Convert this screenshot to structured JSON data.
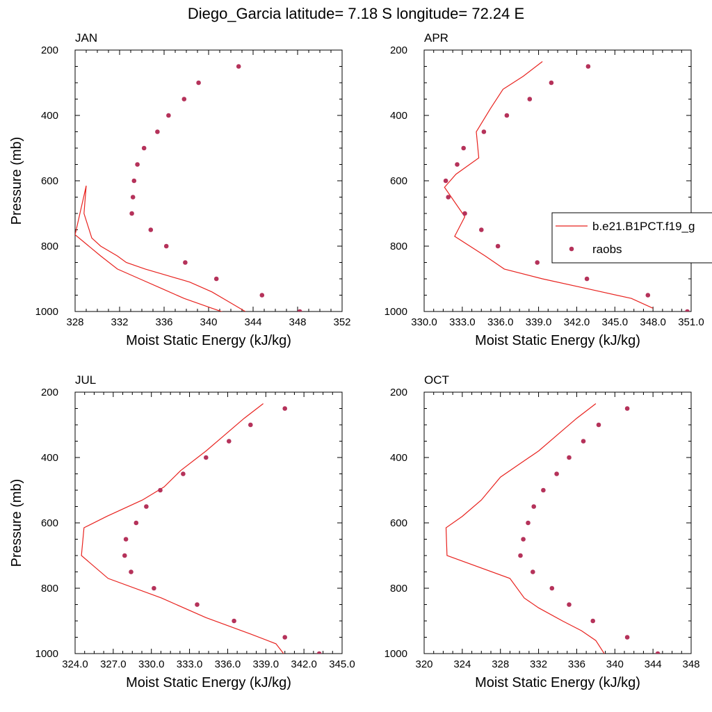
{
  "title": "Diego_Garcia  latitude= 7.18 S longitude= 72.24 E",
  "colors": {
    "model": "#e8221e",
    "obs": "#b5325a",
    "axis": "#000000"
  },
  "legend": {
    "model_label": "b.e21.B1PCT.f19_g",
    "obs_label": "raobs"
  },
  "chart_data": [
    {
      "type": "line",
      "panel": "JAN",
      "xlabel": "Moist Static Energy (kJ/kg)",
      "ylabel": "Pressure (mb)",
      "xlim": [
        328,
        352
      ],
      "xticks": [
        "328",
        "332",
        "336",
        "340",
        "344",
        "348",
        "352"
      ],
      "ylim": [
        200,
        1000
      ],
      "yticks": [
        "200",
        "400",
        "600",
        "800",
        "1000"
      ],
      "series": [
        {
          "name": "b.e21.B1PCT.f19_g",
          "x": [
            343.3,
            341.8,
            340.3,
            338.3,
            336.3,
            334.3,
            332.6,
            331.8,
            330.3,
            329.5,
            328.8,
            329.0,
            328.0,
            330.3,
            331.8,
            333.8,
            335.8,
            337.8,
            340.3,
            342.0
          ],
          "y": [
            1000,
            970,
            940,
            910,
            890,
            870,
            850,
            830,
            800,
            775,
            700,
            615,
            765,
            830,
            870,
            900,
            930,
            960,
            990,
            1010
          ]
        },
        {
          "name": "raobs",
          "x": [
            348.2,
            344.8,
            340.7,
            337.9,
            336.2,
            334.8,
            333.1,
            333.2,
            333.3,
            333.6,
            334.2,
            335.4,
            336.4,
            337.8,
            339.1,
            342.7
          ],
          "y": [
            1000,
            950,
            900,
            850,
            800,
            750,
            700,
            650,
            600,
            550,
            500,
            450,
            400,
            350,
            300,
            250
          ]
        }
      ]
    },
    {
      "type": "line",
      "panel": "APR",
      "xlabel": "Moist Static Energy (kJ/kg)",
      "ylabel": "",
      "xlim": [
        330,
        351
      ],
      "xticks": [
        "330.0",
        "333.0",
        "336.0",
        "339.0",
        "342.0",
        "345.0",
        "348.0",
        "351.0"
      ],
      "ylim": [
        200,
        1000
      ],
      "yticks": [
        "200",
        "400",
        "600",
        "800",
        "1000"
      ],
      "series": [
        {
          "name": "b.e21.B1PCT.f19_g",
          "x": [
            339.3,
            337.8,
            336.2,
            335.2,
            334.1,
            334.3,
            332.5,
            331.6,
            333.2,
            332.4,
            334.8,
            336.3,
            339.3,
            342.8,
            346.3,
            348.0
          ],
          "y": [
            235,
            280,
            320,
            380,
            450,
            530,
            580,
            620,
            710,
            770,
            830,
            870,
            900,
            930,
            960,
            990
          ]
        },
        {
          "name": "raobs",
          "x": [
            350.7,
            347.6,
            342.8,
            338.9,
            335.8,
            334.5,
            333.2,
            331.9,
            331.7,
            332.6,
            333.1,
            334.7,
            336.5,
            338.3,
            340.0,
            342.9
          ],
          "y": [
            1000,
            950,
            900,
            850,
            800,
            750,
            700,
            650,
            600,
            550,
            500,
            450,
            400,
            350,
            300,
            250
          ]
        }
      ]
    },
    {
      "type": "line",
      "panel": "JUL",
      "xlabel": "Moist Static Energy (kJ/kg)",
      "ylabel": "Pressure (mb)",
      "xlim": [
        324,
        345
      ],
      "xticks": [
        "324.0",
        "327.0",
        "330.0",
        "333.0",
        "336.0",
        "339.0",
        "342.0",
        "345.0"
      ],
      "ylim": [
        200,
        1000
      ],
      "yticks": [
        "200",
        "400",
        "600",
        "800",
        "1000"
      ],
      "series": [
        {
          "name": "b.e21.B1PCT.f19_g",
          "x": [
            338.8,
            337.3,
            335.8,
            334.3,
            332.3,
            331.0,
            329.3,
            326.5,
            324.7,
            324.5,
            326.6,
            330.8,
            334.3,
            337.8,
            339.8,
            340.5
          ],
          "y": [
            235,
            280,
            330,
            380,
            440,
            490,
            530,
            580,
            615,
            700,
            770,
            830,
            890,
            940,
            970,
            1005
          ]
        },
        {
          "name": "raobs",
          "x": [
            343.2,
            340.5,
            336.5,
            333.6,
            330.2,
            328.4,
            327.9,
            328.0,
            328.8,
            329.6,
            330.7,
            332.5,
            334.3,
            336.1,
            337.8,
            340.5
          ],
          "y": [
            1000,
            950,
            900,
            850,
            800,
            750,
            700,
            650,
            600,
            550,
            500,
            450,
            400,
            350,
            300,
            250
          ]
        }
      ]
    },
    {
      "type": "line",
      "panel": "OCT",
      "xlabel": "Moist Static Energy (kJ/kg)",
      "ylabel": "",
      "xlim": [
        320,
        348
      ],
      "xticks": [
        "320",
        "324",
        "328",
        "332",
        "336",
        "340",
        "344",
        "348"
      ],
      "ylim": [
        200,
        1000
      ],
      "yticks": [
        "200",
        "400",
        "600",
        "800",
        "1000"
      ],
      "series": [
        {
          "name": "b.e21.B1PCT.f19_g",
          "x": [
            338.0,
            336.0,
            334.0,
            332.0,
            330.0,
            328.0,
            326.0,
            324.0,
            322.3,
            322.4,
            329.0,
            330.5,
            332.0,
            334.5,
            336.5,
            338.0,
            339.0
          ],
          "y": [
            235,
            280,
            330,
            380,
            420,
            460,
            530,
            580,
            615,
            700,
            770,
            830,
            860,
            900,
            930,
            960,
            1005
          ]
        },
        {
          "name": "raobs",
          "x": [
            344.5,
            341.3,
            337.7,
            335.2,
            333.4,
            331.4,
            330.1,
            330.4,
            330.9,
            331.5,
            332.5,
            333.9,
            335.2,
            336.7,
            338.3,
            341.3
          ],
          "y": [
            1000,
            950,
            900,
            850,
            800,
            750,
            700,
            650,
            600,
            550,
            500,
            450,
            400,
            350,
            300,
            250
          ]
        }
      ]
    }
  ]
}
